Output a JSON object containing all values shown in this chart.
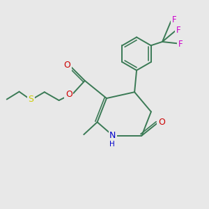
{
  "bg_color": "#e8e8e8",
  "bond_color": "#3a7a55",
  "bond_lw": 1.4,
  "atom_colors": {
    "O": "#cc0000",
    "N": "#0000cc",
    "S": "#cccc00",
    "F": "#cc00cc"
  }
}
